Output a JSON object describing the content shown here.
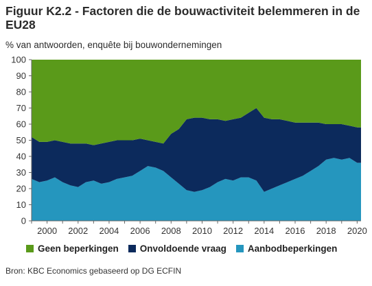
{
  "title": "Figuur K2.2 - Factoren die de bouwactiviteit belemmeren in de EU28",
  "subtitle": "% van antwoorden, enquête bij bouwondernemingen",
  "source": "Bron: KBC Economics gebaseerd op DG ECFIN",
  "chart_data": {
    "type": "area",
    "stacked": true,
    "xlim": [
      1999,
      2020.25
    ],
    "ylim": [
      0,
      100
    ],
    "yticks": [
      0,
      10,
      20,
      30,
      40,
      50,
      60,
      70,
      80,
      90,
      100
    ],
    "xticks": [
      2000,
      2002,
      2004,
      2006,
      2008,
      2010,
      2012,
      2014,
      2016,
      2018,
      2020
    ],
    "x": [
      1999,
      1999.5,
      2000,
      2000.5,
      2001,
      2001.5,
      2002,
      2002.5,
      2003,
      2003.5,
      2004,
      2004.5,
      2005,
      2005.5,
      2006,
      2006.5,
      2007,
      2007.5,
      2008,
      2008.5,
      2009,
      2009.5,
      2010,
      2010.5,
      2011,
      2011.5,
      2012,
      2012.5,
      2013,
      2013.5,
      2014,
      2014.5,
      2015,
      2015.5,
      2016,
      2016.5,
      2017,
      2017.5,
      2018,
      2018.5,
      2019,
      2019.5,
      2020
    ],
    "series": [
      {
        "name": "Aanbodbeperkingen",
        "color": "#2596be",
        "values": [
          26,
          24,
          25,
          27,
          24,
          22,
          21,
          24,
          25,
          23,
          24,
          26,
          27,
          28,
          31,
          34,
          33,
          31,
          27,
          23,
          19,
          18,
          19,
          21,
          24,
          26,
          25,
          27,
          27,
          25,
          18,
          20,
          22,
          24,
          26,
          28,
          31,
          34,
          38,
          39,
          38,
          39,
          36
        ]
      },
      {
        "name": "Onvoldoende vraag",
        "color": "#0c2a5c",
        "values": [
          26,
          25,
          24,
          23,
          25,
          26,
          27,
          24,
          22,
          25,
          25,
          24,
          23,
          22,
          20,
          16,
          16,
          17,
          27,
          34,
          44,
          46,
          45,
          42,
          39,
          36,
          38,
          37,
          40,
          45,
          46,
          43,
          41,
          38,
          35,
          33,
          30,
          27,
          22,
          21,
          22,
          20,
          22
        ]
      },
      {
        "name": "Geen beperkingen",
        "color": "#5a9a1a",
        "values": [
          48,
          51,
          51,
          50,
          51,
          52,
          52,
          52,
          53,
          52,
          51,
          50,
          50,
          50,
          49,
          50,
          51,
          52,
          46,
          43,
          37,
          36,
          36,
          37,
          37,
          38,
          37,
          36,
          33,
          30,
          36,
          37,
          37,
          38,
          39,
          39,
          39,
          39,
          40,
          40,
          40,
          41,
          42
        ]
      }
    ],
    "legend": [
      "Geen beperkingen",
      "Onvoldoende vraag",
      "Aanbodbeperkingen"
    ],
    "legend_position": "bottom"
  }
}
